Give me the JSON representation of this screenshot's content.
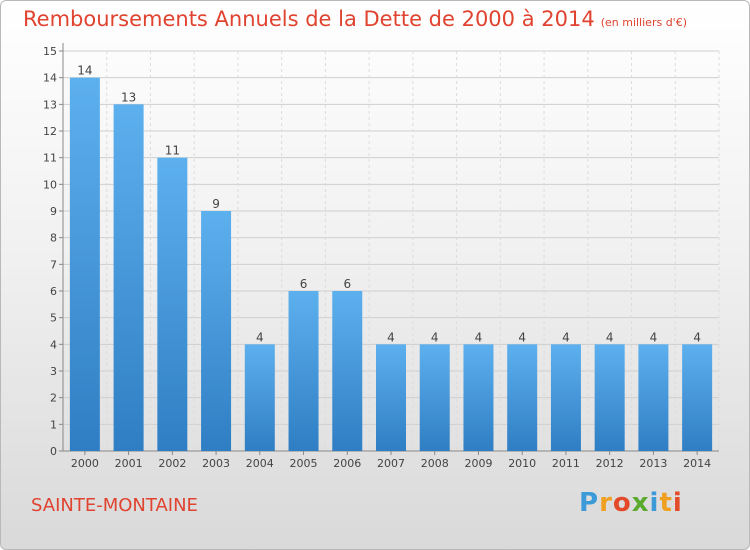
{
  "chart_data": {
    "type": "bar",
    "title": "Remboursements Annuels de la Dette de 2000 à 2014",
    "unit_note": "(en milliers d'€)",
    "categories": [
      "2000",
      "2001",
      "2002",
      "2003",
      "2004",
      "2005",
      "2006",
      "2007",
      "2008",
      "2009",
      "2010",
      "2011",
      "2012",
      "2013",
      "2014"
    ],
    "values": [
      14,
      13,
      11,
      9,
      4,
      6,
      6,
      4,
      4,
      4,
      4,
      4,
      4,
      4,
      4
    ],
    "ylim": [
      0,
      15
    ],
    "yticks": [
      "0",
      "1",
      "2",
      "3",
      "4",
      "5",
      "6",
      "7",
      "8",
      "9",
      "10",
      "11",
      "12",
      "13",
      "14",
      "15"
    ],
    "grid": true,
    "bar_color": "#3f8fd6"
  },
  "commune": "SAINTE-MONTAINE",
  "logo": {
    "letters": [
      "P",
      "r",
      "o",
      "x",
      "i",
      "t",
      "i"
    ],
    "colors": [
      "#3c9ad8",
      "#f0a020",
      "#e34a2a",
      "#5aaa2d",
      "#3c9ad8",
      "#f0a020",
      "#e34a2a"
    ]
  },
  "colors": {
    "accent": "#e0432f"
  }
}
